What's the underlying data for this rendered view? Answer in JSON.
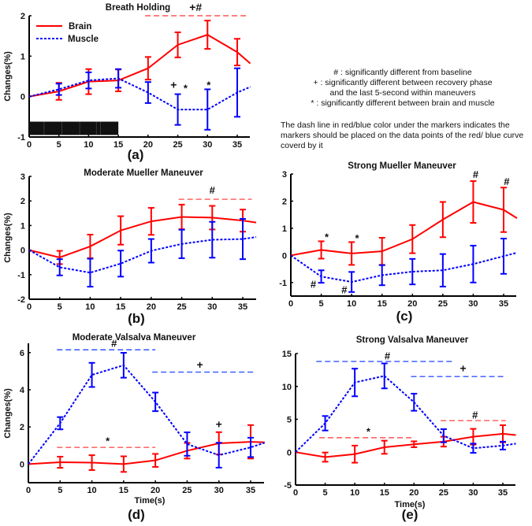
{
  "colors": {
    "brain": "#ff0000",
    "muscle": "#0000ff",
    "brain_dash": "#ff5555",
    "muscle_dash": "#3355ff",
    "bar": "#111111"
  },
  "legend": {
    "brain": "Brain",
    "muscle": "Muscle"
  },
  "notes": {
    "lines": [
      "# : significantly different from baseline",
      "+ : significantly different between recovery phase",
      "and the last 5-second within maneuvers",
      "* : significantly different between brain and muscle"
    ],
    "dash_note": "The dash line in red/blue color under the markers indicates the markers should be placed on the data points of the red/ blue curve coverd by it"
  },
  "chart_data": [
    {
      "type": "line",
      "title": "Breath Holding",
      "panel_label": "(a)",
      "xlabel": "",
      "ylabel": "Changes(%)",
      "xlim": [
        0,
        37.2
      ],
      "ylim": [
        -1,
        2
      ],
      "xticks": [
        "0",
        "5",
        "10",
        "15",
        "20",
        "25",
        "30",
        "35"
      ],
      "yticks": [
        "-1",
        "0",
        "1",
        "2"
      ],
      "x": [
        0,
        5,
        10,
        15,
        20,
        25,
        30,
        35,
        37.2
      ],
      "series": [
        {
          "name": "Brain",
          "values": [
            0,
            0.13,
            0.37,
            0.4,
            0.7,
            1.28,
            1.53,
            1.1,
            0.82
          ],
          "errors": [
            0,
            0.21,
            0.31,
            0.27,
            0.28,
            0.31,
            0.35,
            0.33,
            0
          ]
        },
        {
          "name": "Muscle",
          "values": [
            0,
            0.18,
            0.4,
            0.45,
            0.1,
            -0.32,
            -0.32,
            0.1,
            0.24
          ],
          "errors": [
            0,
            0.14,
            0.2,
            0.23,
            0.26,
            0.38,
            0.5,
            0.6,
            0
          ]
        }
      ],
      "shaded_period": {
        "from": 0,
        "to": 15
      },
      "dash_lines": [
        {
          "series": "Brain",
          "y": 2,
          "from": 19.5,
          "to": 36.5
        }
      ],
      "annotations": [
        {
          "text": "+#",
          "x": 28,
          "y": 2.12
        },
        {
          "text": "+",
          "x": 24.3,
          "y": 0.2
        },
        {
          "text": "*",
          "x": 26.3,
          "y": 0.12
        },
        {
          "text": "*",
          "x": 30.2,
          "y": 0.2
        }
      ]
    },
    {
      "type": "line",
      "title": "Moderate Mueller Maneuver",
      "panel_label": "(b)",
      "xlabel": "",
      "ylabel": "Changes(%)",
      "xlim": [
        0,
        37.2
      ],
      "ylim": [
        -2,
        3
      ],
      "xticks": [
        "0",
        "5",
        "10",
        "15",
        "20",
        "25",
        "30",
        "35"
      ],
      "yticks": [
        "-2",
        "-1",
        "0",
        "1",
        "2",
        "3"
      ],
      "x": [
        0,
        5,
        10,
        15,
        20,
        25,
        30,
        35,
        37.2
      ],
      "series": [
        {
          "name": "Brain",
          "values": [
            0,
            -0.3,
            0.15,
            0.8,
            1.17,
            1.35,
            1.32,
            1.2,
            1.12
          ],
          "errors": [
            0,
            0.27,
            0.48,
            0.58,
            0.55,
            0.5,
            0.48,
            0.45,
            0
          ]
        },
        {
          "name": "Muscle",
          "values": [
            0,
            -0.7,
            -0.92,
            -0.55,
            -0.03,
            0.25,
            0.42,
            0.45,
            0.53
          ],
          "errors": [
            0,
            0.33,
            0.57,
            0.53,
            0.48,
            0.58,
            0.73,
            0.82,
            0
          ]
        }
      ],
      "dash_lines": [
        {
          "series": "Brain",
          "y": 2.07,
          "from": 24.5,
          "to": 36.5
        }
      ],
      "annotations": [
        {
          "text": "#",
          "x": 30,
          "y": 2.3
        }
      ]
    },
    {
      "type": "line",
      "title": "Strong Mueller Maneuver",
      "panel_label": "(c)",
      "xlabel": "",
      "ylabel": "",
      "xlim": [
        0,
        37.2
      ],
      "ylim": [
        -1.5,
        3
      ],
      "xticks": [
        "0",
        "5",
        "10",
        "15",
        "20",
        "25",
        "30",
        "35"
      ],
      "yticks": [
        "-1",
        "0",
        "1",
        "2",
        "3"
      ],
      "x": [
        0,
        5,
        10,
        15,
        20,
        25,
        30,
        35,
        37.2
      ],
      "series": [
        {
          "name": "Brain",
          "values": [
            0,
            0.2,
            0.07,
            0.15,
            0.6,
            1.32,
            1.97,
            1.68,
            1.37
          ],
          "errors": [
            0,
            0.32,
            0.42,
            0.5,
            0.52,
            0.65,
            0.77,
            0.82,
            0
          ]
        },
        {
          "name": "Muscle",
          "values": [
            0,
            -0.78,
            -0.98,
            -0.73,
            -0.6,
            -0.55,
            -0.32,
            -0.03,
            0.1
          ],
          "errors": [
            0,
            0.23,
            0.37,
            0.37,
            0.47,
            0.6,
            0.68,
            0.65,
            0
          ]
        }
      ],
      "dash_lines": [],
      "annotations": [
        {
          "text": "*",
          "x": 5.9,
          "y": 0.55
        },
        {
          "text": "*",
          "x": 10.9,
          "y": 0.5
        },
        {
          "text": "#",
          "x": 3.7,
          "y": -1.2
        },
        {
          "text": "#",
          "x": 8.8,
          "y": -1.4
        },
        {
          "text": "#",
          "x": 30.4,
          "y": 2.85
        },
        {
          "text": "#",
          "x": 35.5,
          "y": 2.6
        }
      ]
    },
    {
      "type": "line",
      "title": "Moderate Valsalva Maneuver",
      "panel_label": "(d)",
      "xlabel": "Time(s)",
      "ylabel": "Changes(%)",
      "xlim": [
        0,
        37.2
      ],
      "ylim": [
        -1,
        6.5
      ],
      "xticks": [
        "0",
        "5",
        "10",
        "15",
        "20",
        "25",
        "30",
        "35"
      ],
      "yticks": [
        "0",
        "2",
        "4",
        "6"
      ],
      "x": [
        0,
        5,
        10,
        15,
        20,
        25,
        30,
        35,
        37.2
      ],
      "series": [
        {
          "name": "Brain",
          "values": [
            0,
            0.1,
            0.08,
            0,
            0.2,
            0.72,
            1.12,
            1.2,
            1.17
          ],
          "errors": [
            0,
            0.3,
            0.4,
            0.42,
            0.35,
            0.42,
            0.6,
            0.9,
            0
          ]
        },
        {
          "name": "Muscle",
          "values": [
            0,
            2.2,
            4.8,
            5.32,
            3.35,
            1.08,
            0.48,
            0.9,
            1.15
          ],
          "errors": [
            0,
            0.33,
            0.65,
            0.67,
            0.5,
            0.63,
            0.67,
            0.52,
            0
          ]
        }
      ],
      "dash_lines": [
        {
          "series": "Muscle",
          "y": 6.15,
          "from": 4.5,
          "to": 20
        },
        {
          "series": "Muscle",
          "y": 4.95,
          "from": 19.5,
          "to": 35.5
        },
        {
          "series": "Brain",
          "y": 0.9,
          "from": 4.5,
          "to": 20
        }
      ],
      "annotations": [
        {
          "text": "#",
          "x": 13.5,
          "y": 6.3
        },
        {
          "text": "+",
          "x": 27,
          "y": 5.15
        },
        {
          "text": "*",
          "x": 12.5,
          "y": 1.05
        },
        {
          "text": "+",
          "x": 30,
          "y": 1.95
        }
      ]
    },
    {
      "type": "line",
      "title": "Strong Valsalva Maneuver",
      "panel_label": "(e)",
      "xlabel": "Time(s)",
      "ylabel": "",
      "xlim": [
        0,
        37.2
      ],
      "ylim": [
        -5,
        15
      ],
      "xticks": [
        "0",
        "5",
        "10",
        "15",
        "20",
        "25",
        "30",
        "35"
      ],
      "yticks": [
        "-5",
        "0",
        "5",
        "10",
        "15"
      ],
      "x": [
        0,
        5,
        10,
        15,
        20,
        25,
        30,
        35,
        37.2
      ],
      "series": [
        {
          "name": "Brain",
          "values": [
            0,
            -0.75,
            -0.3,
            0.75,
            1.2,
            1.6,
            2.35,
            2.8,
            2.6
          ],
          "errors": [
            0,
            0.7,
            1.3,
            1.0,
            0.45,
            0.75,
            1.2,
            1.3,
            0
          ]
        },
        {
          "name": "Muscle",
          "values": [
            0,
            4.4,
            10.6,
            11.6,
            7.6,
            2.5,
            0.6,
            1.0,
            1.3
          ],
          "errors": [
            0,
            1.1,
            2.1,
            1.9,
            1.3,
            1.0,
            0.7,
            0.6,
            0
          ]
        }
      ],
      "dash_lines": [
        {
          "series": "Muscle",
          "y": 13.8,
          "from": 3.5,
          "to": 26.5
        },
        {
          "series": "Muscle",
          "y": 11.5,
          "from": 19.5,
          "to": 35.5
        },
        {
          "series": "Brain",
          "y": 4.8,
          "from": 24.5,
          "to": 35.5
        },
        {
          "series": "Brain",
          "y": 2.2,
          "from": 4,
          "to": 20
        }
      ],
      "annotations": [
        {
          "text": "#",
          "x": 15.5,
          "y": 14.1
        },
        {
          "text": "+",
          "x": 28.3,
          "y": 12.2
        },
        {
          "text": "#",
          "x": 30.3,
          "y": 5.1
        },
        {
          "text": "*",
          "x": 12.3,
          "y": 2.6
        }
      ]
    }
  ]
}
